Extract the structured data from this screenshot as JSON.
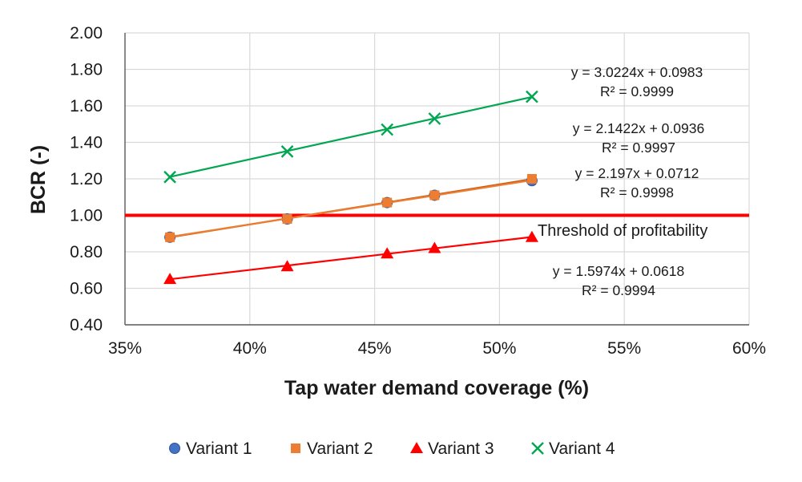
{
  "chart_data": {
    "type": "scatter",
    "xlabel": "Tap water demand coverage (%)",
    "ylabel": "BCR (-)",
    "xlim": [
      0.35,
      0.6
    ],
    "ylim": [
      0.4,
      2.0
    ],
    "x_ticks": [
      0.35,
      0.4,
      0.45,
      0.5,
      0.55,
      0.6
    ],
    "x_tick_labels": [
      "35%",
      "40%",
      "45%",
      "50%",
      "55%",
      "60%"
    ],
    "y_ticks": [
      0.4,
      0.6,
      0.8,
      1.0,
      1.2,
      1.4,
      1.6,
      1.8,
      2.0
    ],
    "y_tick_labels": [
      "0.40",
      "0.60",
      "0.80",
      "1.00",
      "1.20",
      "1.40",
      "1.60",
      "1.80",
      "2.00"
    ],
    "grid": true,
    "legend_position": "bottom",
    "series": [
      {
        "name": "Variant 1",
        "marker": "circle",
        "color": "#4472c4",
        "line_color": "#c55a11",
        "x": [
          0.368,
          0.415,
          0.455,
          0.474,
          0.513
        ],
        "y": [
          0.88,
          0.98,
          1.07,
          1.11,
          1.19
        ],
        "trend": {
          "slope": 2.197,
          "intercept": 0.0712
        },
        "equation": "y = 2.197x + 0.0712",
        "r2": "R² = 0.9998"
      },
      {
        "name": "Variant 2",
        "marker": "square",
        "color": "#ed7d31",
        "line_color": "#ed7d31",
        "x": [
          0.368,
          0.415,
          0.455,
          0.474,
          0.513
        ],
        "y": [
          0.88,
          0.98,
          1.07,
          1.11,
          1.2
        ],
        "trend": {
          "slope": 2.1422,
          "intercept": 0.0936
        },
        "equation": "y = 2.1422x + 0.0936",
        "r2": "R² = 0.9997"
      },
      {
        "name": "Variant 3",
        "marker": "triangle",
        "color": "#ff0000",
        "line_color": "#ff0000",
        "x": [
          0.368,
          0.415,
          0.455,
          0.474,
          0.513
        ],
        "y": [
          0.65,
          0.72,
          0.79,
          0.82,
          0.88
        ],
        "trend": {
          "slope": 1.5974,
          "intercept": 0.0618
        },
        "equation": "y = 1.5974x + 0.0618",
        "r2": "R² = 0.9994"
      },
      {
        "name": "Variant 4",
        "marker": "x",
        "color": "#00a650",
        "line_color": "#00a650",
        "x": [
          0.368,
          0.415,
          0.455,
          0.474,
          0.513
        ],
        "y": [
          1.21,
          1.35,
          1.47,
          1.53,
          1.65
        ],
        "trend": {
          "slope": 3.0224,
          "intercept": 0.0983
        },
        "equation": "y = 3.0224x + 0.0983",
        "r2": "R² = 0.9999"
      }
    ],
    "threshold": {
      "value": 1.0,
      "label": "Threshold of profitability",
      "color": "#ff0000"
    }
  }
}
